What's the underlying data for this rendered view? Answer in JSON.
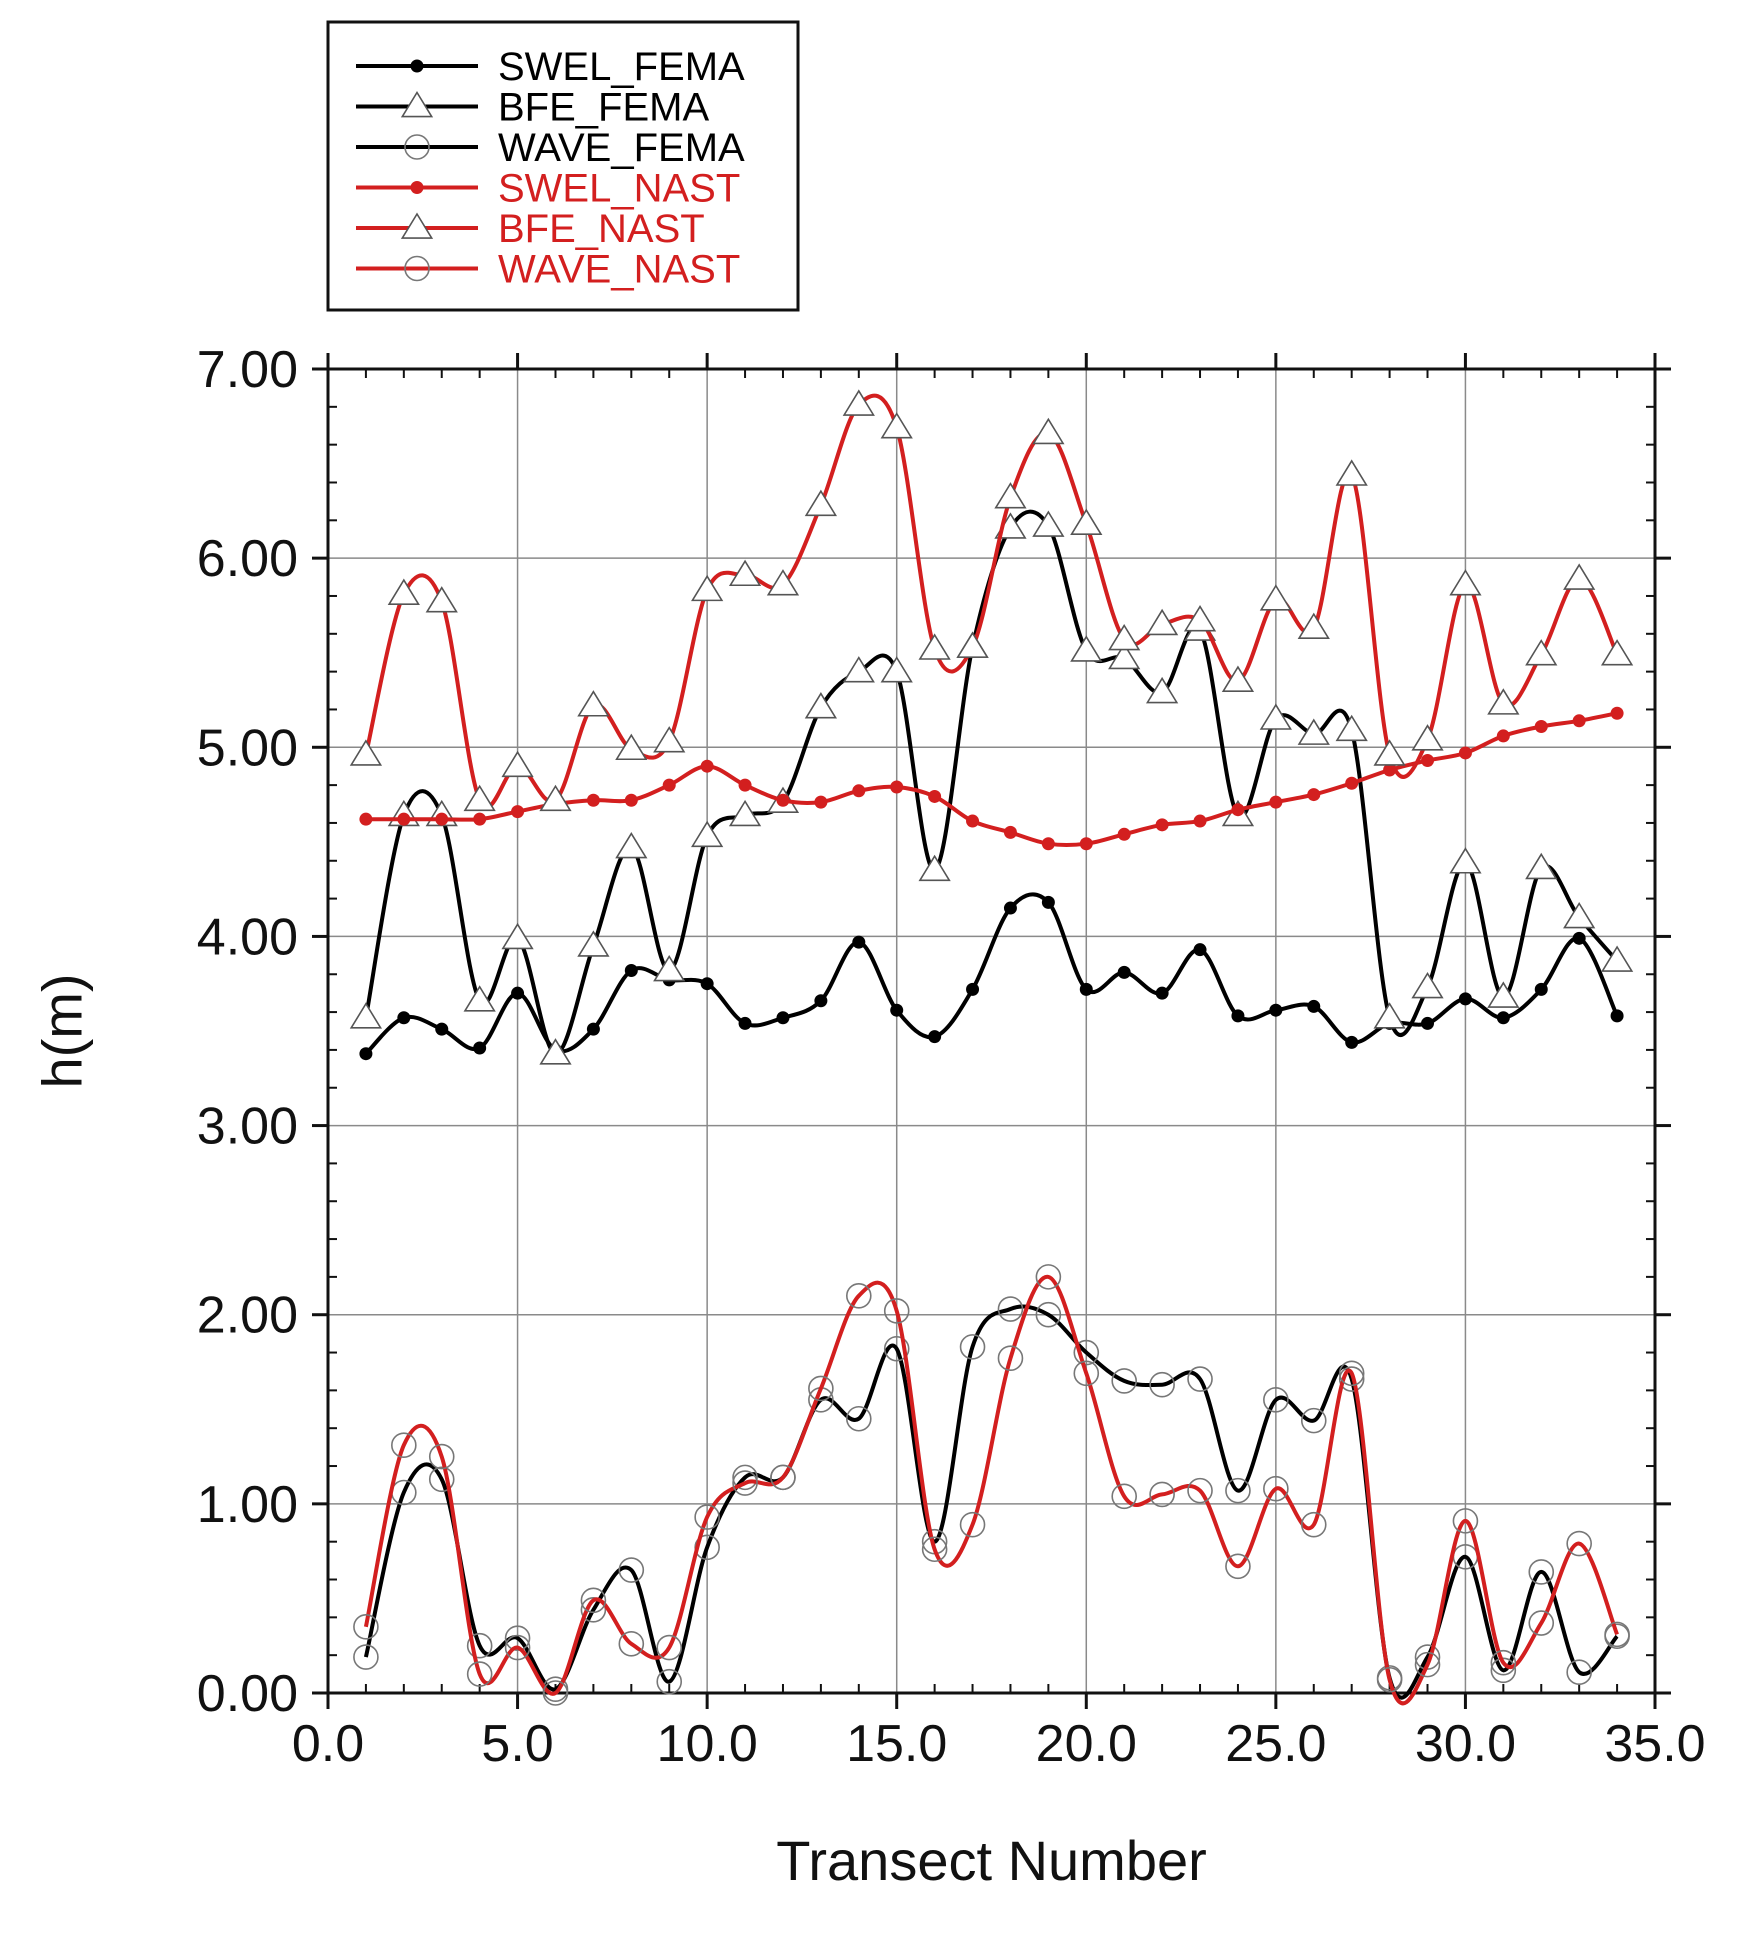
{
  "chart_data": {
    "type": "line",
    "title": "",
    "xlabel": "Transect Number",
    "ylabel": "h(m)",
    "xlim": [
      0,
      35
    ],
    "ylim": [
      0,
      7
    ],
    "xticks": [
      0,
      5,
      10,
      15,
      20,
      25,
      30,
      35
    ],
    "xtick_labels": [
      "0.0",
      "5.0",
      "10.0",
      "15.0",
      "20.0",
      "25.0",
      "30.0",
      "35.0"
    ],
    "yticks": [
      0,
      1,
      2,
      3,
      4,
      5,
      6,
      7
    ],
    "ytick_labels": [
      "0.00",
      "1.00",
      "2.00",
      "3.00",
      "4.00",
      "5.00",
      "6.00",
      "7.00"
    ],
    "grid": true,
    "legend_position": "top-left, above plot",
    "x": [
      1,
      2,
      3,
      4,
      5,
      6,
      7,
      8,
      9,
      10,
      11,
      12,
      13,
      14,
      15,
      16,
      17,
      18,
      19,
      20,
      21,
      22,
      23,
      24,
      25,
      26,
      27,
      28,
      29,
      30,
      31,
      32,
      33,
      34
    ],
    "series": [
      {
        "name": "SWEL_FEMA",
        "color": "#000000",
        "marker": "dot",
        "values": [
          3.38,
          3.57,
          3.51,
          3.41,
          3.7,
          3.4,
          3.51,
          3.82,
          3.77,
          3.75,
          3.54,
          3.57,
          3.66,
          3.97,
          3.61,
          3.47,
          3.72,
          4.15,
          4.18,
          3.72,
          3.81,
          3.7,
          3.93,
          3.58,
          3.61,
          3.63,
          3.44,
          3.54,
          3.54,
          3.67,
          3.57,
          3.72,
          3.99,
          3.58
        ]
      },
      {
        "name": "BFE_FEMA",
        "color": "#000000",
        "marker": "triangle",
        "values": [
          3.57,
          4.64,
          4.64,
          3.66,
          3.99,
          3.38,
          3.95,
          4.47,
          3.82,
          4.53,
          4.64,
          4.71,
          5.21,
          5.4,
          5.4,
          4.35,
          5.53,
          6.16,
          6.17,
          5.51,
          5.47,
          5.29,
          5.62,
          4.64,
          5.15,
          5.07,
          5.09,
          3.57,
          3.73,
          4.39,
          3.68,
          4.36,
          4.1,
          3.87
        ]
      },
      {
        "name": "WAVE_FEMA",
        "color": "#000000",
        "marker": "circle",
        "values": [
          0.19,
          1.06,
          1.13,
          0.25,
          0.29,
          0.02,
          0.44,
          0.65,
          0.06,
          0.77,
          1.14,
          1.14,
          1.55,
          1.45,
          1.82,
          0.8,
          1.83,
          2.03,
          2.0,
          1.8,
          1.65,
          1.63,
          1.66,
          1.07,
          1.55,
          1.44,
          1.66,
          0.08,
          0.19,
          0.72,
          0.12,
          0.64,
          0.11,
          0.3
        ]
      },
      {
        "name": "SWEL_NAST",
        "color": "#d31f1f",
        "marker": "dot",
        "values": [
          4.62,
          4.62,
          4.62,
          4.62,
          4.66,
          4.7,
          4.72,
          4.72,
          4.8,
          4.9,
          4.8,
          4.72,
          4.71,
          4.77,
          4.79,
          4.74,
          4.61,
          4.55,
          4.49,
          4.49,
          4.54,
          4.59,
          4.61,
          4.67,
          4.71,
          4.75,
          4.81,
          4.88,
          4.93,
          4.97,
          5.06,
          5.11,
          5.14,
          5.18
        ]
      },
      {
        "name": "BFE_NAST",
        "color": "#d31f1f",
        "marker": "triangle",
        "values": [
          4.96,
          5.81,
          5.77,
          4.72,
          4.9,
          4.72,
          5.22,
          4.99,
          5.03,
          5.83,
          5.91,
          5.86,
          6.28,
          6.81,
          6.69,
          5.52,
          5.53,
          6.32,
          6.66,
          6.18,
          5.57,
          5.65,
          5.67,
          5.35,
          5.78,
          5.63,
          6.44,
          4.96,
          5.04,
          5.86,
          5.23,
          5.49,
          5.89,
          5.49
        ]
      },
      {
        "name": "WAVE_NAST",
        "color": "#d31f1f",
        "marker": "circle",
        "values": [
          0.35,
          1.31,
          1.25,
          0.1,
          0.24,
          0.0,
          0.49,
          0.26,
          0.24,
          0.93,
          1.11,
          1.14,
          1.61,
          2.1,
          2.02,
          0.76,
          0.89,
          1.77,
          2.2,
          1.69,
          1.04,
          1.05,
          1.07,
          0.67,
          1.08,
          0.89,
          1.69,
          0.07,
          0.15,
          0.91,
          0.16,
          0.37,
          0.79,
          0.31
        ]
      }
    ]
  }
}
